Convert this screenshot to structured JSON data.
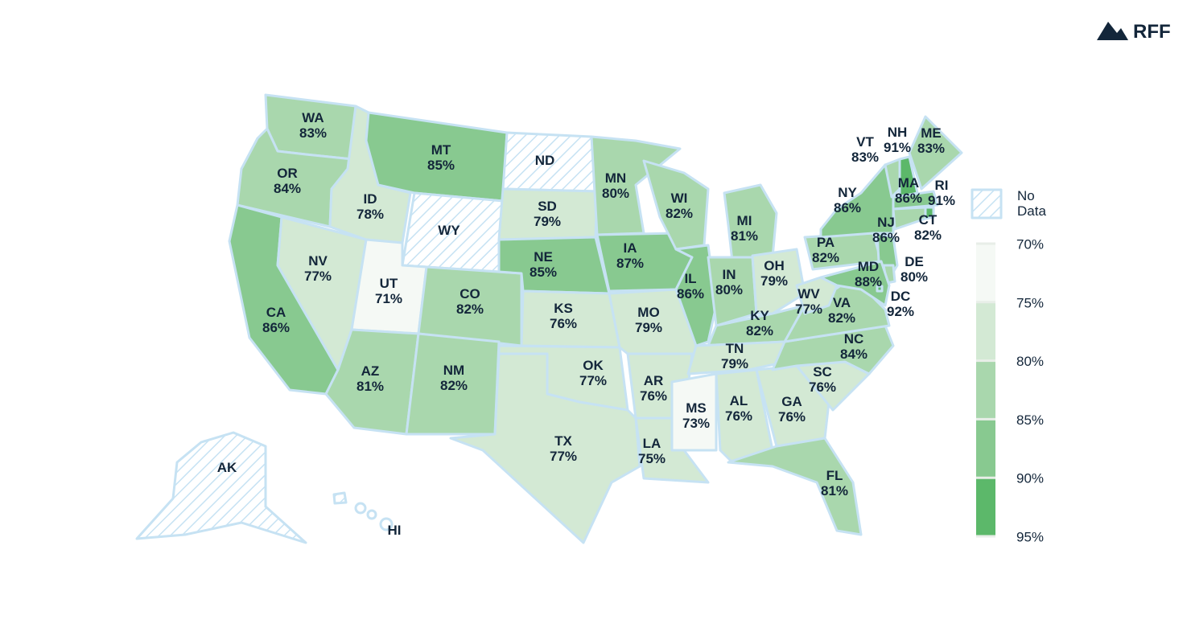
{
  "chart_data": {
    "type": "choropleth",
    "logo": "RFF",
    "categories": [
      "WA",
      "OR",
      "CA",
      "NV",
      "ID",
      "MT",
      "WY",
      "UT",
      "CO",
      "AZ",
      "NM",
      "ND",
      "SD",
      "NE",
      "KS",
      "OK",
      "TX",
      "MN",
      "IA",
      "MO",
      "AR",
      "LA",
      "WI",
      "IL",
      "MI",
      "IN",
      "OH",
      "KY",
      "TN",
      "MS",
      "AL",
      "GA",
      "FL",
      "SC",
      "NC",
      "VA",
      "WV",
      "PA",
      "NY",
      "NJ",
      "DE",
      "MD",
      "DC",
      "VT",
      "NH",
      "ME",
      "MA",
      "RI",
      "CT",
      "AK",
      "HI"
    ],
    "values": [
      83,
      84,
      86,
      77,
      78,
      85,
      null,
      71,
      82,
      81,
      82,
      null,
      79,
      85,
      76,
      77,
      77,
      80,
      87,
      79,
      76,
      75,
      82,
      86,
      81,
      80,
      79,
      82,
      79,
      73,
      76,
      76,
      81,
      76,
      84,
      82,
      77,
      82,
      86,
      86,
      80,
      88,
      92,
      83,
      91,
      83,
      86,
      91,
      82,
      null,
      null
    ],
    "value_labels": [
      "83%",
      "84%",
      "86%",
      "77%",
      "78%",
      "85%",
      null,
      "71%",
      "82%",
      "81%",
      "82%",
      null,
      "79%",
      "85%",
      "76%",
      "77%",
      "77%",
      "80%",
      "87%",
      "79%",
      "76%",
      "75%",
      "82%",
      "86%",
      "81%",
      "80%",
      "79%",
      "82%",
      "79%",
      "73%",
      "76%",
      "76%",
      "81%",
      "76%",
      "84%",
      "82%",
      "77%",
      "82%",
      "86%",
      "86%",
      "80%",
      "88%",
      "92%",
      "83%",
      "91%",
      "83%",
      "86%",
      "91%",
      "82%",
      null,
      null
    ],
    "color_lim": [
      70,
      95
    ],
    "color_ticks": [
      {
        "value": 70,
        "label": "70%"
      },
      {
        "value": 75,
        "label": "75%"
      },
      {
        "value": 80,
        "label": "80%"
      },
      {
        "value": 85,
        "label": "85%"
      },
      {
        "value": 90,
        "label": "90%"
      },
      {
        "value": 95,
        "label": "95%"
      }
    ],
    "colors": [
      "#f5f9f5",
      "#d3e9d4",
      "#a9d7ad",
      "#88c990",
      "#5cb86a"
    ],
    "no_data_label": "No Data"
  }
}
